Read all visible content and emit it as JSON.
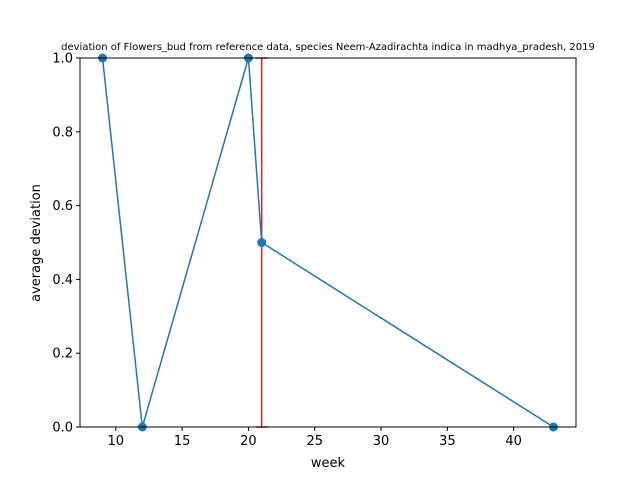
{
  "chart_data": {
    "type": "line",
    "title": "deviation of Flowers_bud from reference data, species Neem-Azadirachta indica in madhya_pradesh, 2019",
    "xlabel": "week",
    "ylabel": "average deviation",
    "xlim": [
      7.3,
      44.7
    ],
    "ylim": [
      0,
      1
    ],
    "x_ticks": [
      "10",
      "15",
      "20",
      "25",
      "30",
      "35",
      "40"
    ],
    "x_tick_values": [
      10,
      15,
      20,
      25,
      30,
      35,
      40
    ],
    "y_ticks": [
      "0.0",
      "0.2",
      "0.4",
      "0.6",
      "0.8",
      "1.0"
    ],
    "y_tick_values": [
      0,
      0.2,
      0.4,
      0.6,
      0.8,
      1.0
    ],
    "grid": false,
    "series": [
      {
        "x": [
          9,
          12,
          20,
          21,
          43
        ],
        "y": [
          1.0,
          0.0,
          1.0,
          0.5,
          0.0
        ],
        "color": "#1f77b4",
        "marker": "circle"
      }
    ],
    "vertical_line": {
      "x": 21,
      "y_range": [
        0,
        1
      ],
      "color": "#d62728"
    }
  }
}
